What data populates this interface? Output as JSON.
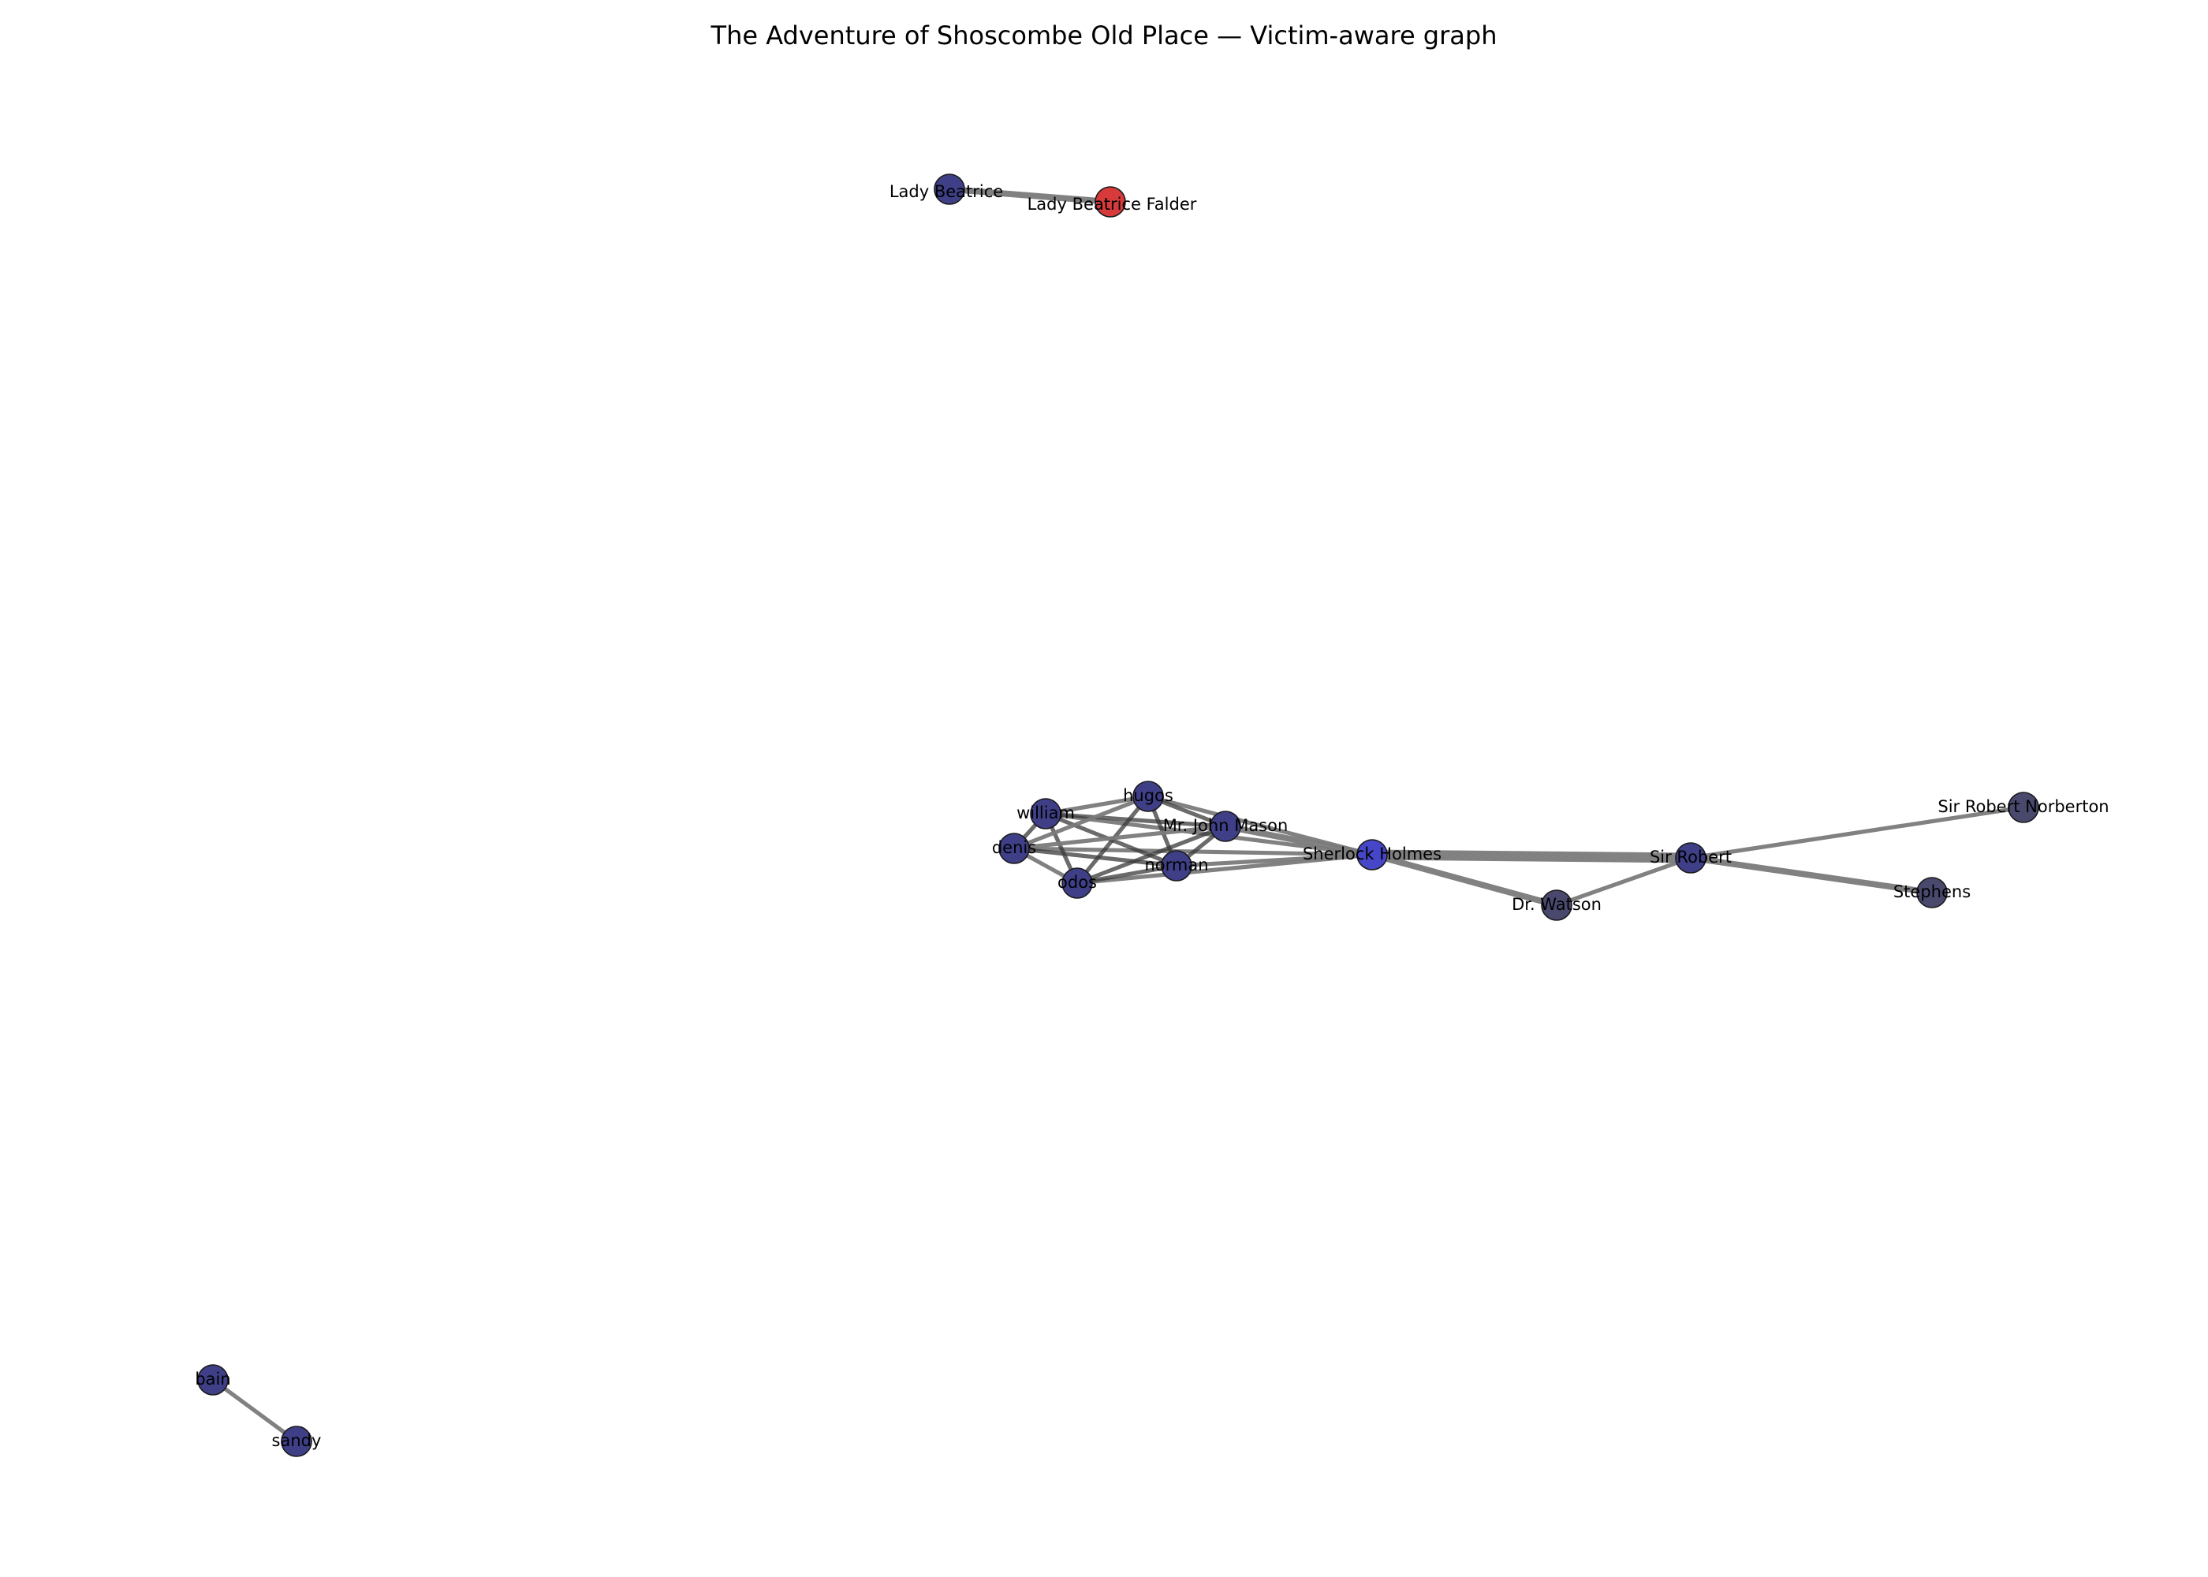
{
  "title": "The Adventure of Shoscombe Old Place — Victim-aware graph",
  "colors": {
    "background": "#ffffff",
    "node_default": "#3f3f88",
    "node_highlight": "#4646c8",
    "node_dark": "#49496e",
    "node_victim": "#d63a3a",
    "node_outline": "#1a1a1a",
    "edge": "#7a7a7a",
    "edge_dark": "#3a3a3a"
  },
  "nodes": [
    {
      "id": "lady_beatrice",
      "label": "Lady Beatrice",
      "color": "node_default"
    },
    {
      "id": "lady_beatrice_falder",
      "label": "Lady Beatrice Falder",
      "color": "node_victim"
    },
    {
      "id": "hugos",
      "label": "hugos",
      "color": "node_default"
    },
    {
      "id": "william",
      "label": "william",
      "color": "node_default"
    },
    {
      "id": "mr_john_mason",
      "label": "Mr. John Mason",
      "color": "node_default"
    },
    {
      "id": "denis",
      "label": "denis",
      "color": "node_default"
    },
    {
      "id": "odos",
      "label": "odos",
      "color": "node_default"
    },
    {
      "id": "norman",
      "label": "norman",
      "color": "node_default"
    },
    {
      "id": "sherlock_holmes",
      "label": "Sherlock Holmes",
      "color": "node_highlight"
    },
    {
      "id": "dr_watson",
      "label": "Dr. Watson",
      "color": "node_dark"
    },
    {
      "id": "sir_robert",
      "label": "Sir Robert",
      "color": "node_default"
    },
    {
      "id": "sir_robert_norberton",
      "label": "Sir Robert Norberton",
      "color": "node_dark"
    },
    {
      "id": "stephens",
      "label": "Stephens",
      "color": "node_dark"
    },
    {
      "id": "bain",
      "label": "bain",
      "color": "node_default"
    },
    {
      "id": "sandy",
      "label": "sandy",
      "color": "node_default"
    }
  ],
  "edges": [
    {
      "source": "lady_beatrice",
      "target": "lady_beatrice_falder",
      "weight": 3,
      "tone": "edge"
    },
    {
      "source": "bain",
      "target": "sandy",
      "weight": 2,
      "tone": "edge"
    },
    {
      "source": "sherlock_holmes",
      "target": "sir_robert",
      "weight": 5,
      "tone": "edge"
    },
    {
      "source": "sherlock_holmes",
      "target": "dr_watson",
      "weight": 3,
      "tone": "edge"
    },
    {
      "source": "dr_watson",
      "target": "sir_robert",
      "weight": 2,
      "tone": "edge"
    },
    {
      "source": "sir_robert",
      "target": "sir_robert_norberton",
      "weight": 2,
      "tone": "edge"
    },
    {
      "source": "sir_robert",
      "target": "stephens",
      "weight": 3,
      "tone": "edge"
    },
    {
      "source": "sherlock_holmes",
      "target": "mr_john_mason",
      "weight": 3,
      "tone": "edge"
    },
    {
      "source": "sherlock_holmes",
      "target": "hugos",
      "weight": 2,
      "tone": "edge"
    },
    {
      "source": "sherlock_holmes",
      "target": "william",
      "weight": 2,
      "tone": "edge"
    },
    {
      "source": "sherlock_holmes",
      "target": "denis",
      "weight": 2,
      "tone": "edge"
    },
    {
      "source": "sherlock_holmes",
      "target": "odos",
      "weight": 2,
      "tone": "edge"
    },
    {
      "source": "sherlock_holmes",
      "target": "norman",
      "weight": 2,
      "tone": "edge"
    },
    {
      "source": "william",
      "target": "hugos",
      "weight": 2,
      "tone": "edge"
    },
    {
      "source": "william",
      "target": "mr_john_mason",
      "weight": 2,
      "tone": "edge_dark"
    },
    {
      "source": "william",
      "target": "denis",
      "weight": 2,
      "tone": "edge_dark"
    },
    {
      "source": "william",
      "target": "odos",
      "weight": 2,
      "tone": "edge_dark"
    },
    {
      "source": "william",
      "target": "norman",
      "weight": 2,
      "tone": "edge_dark"
    },
    {
      "source": "hugos",
      "target": "mr_john_mason",
      "weight": 2,
      "tone": "edge_dark"
    },
    {
      "source": "hugos",
      "target": "denis",
      "weight": 2,
      "tone": "edge"
    },
    {
      "source": "hugos",
      "target": "odos",
      "weight": 2,
      "tone": "edge_dark"
    },
    {
      "source": "hugos",
      "target": "norman",
      "weight": 2,
      "tone": "edge_dark"
    },
    {
      "source": "mr_john_mason",
      "target": "denis",
      "weight": 2,
      "tone": "edge"
    },
    {
      "source": "mr_john_mason",
      "target": "odos",
      "weight": 2,
      "tone": "edge_dark"
    },
    {
      "source": "mr_john_mason",
      "target": "norman",
      "weight": 2,
      "tone": "edge_dark"
    },
    {
      "source": "denis",
      "target": "odos",
      "weight": 2,
      "tone": "edge"
    },
    {
      "source": "denis",
      "target": "norman",
      "weight": 2,
      "tone": "edge_dark"
    },
    {
      "source": "odos",
      "target": "norman",
      "weight": 2,
      "tone": "edge_dark"
    }
  ]
}
